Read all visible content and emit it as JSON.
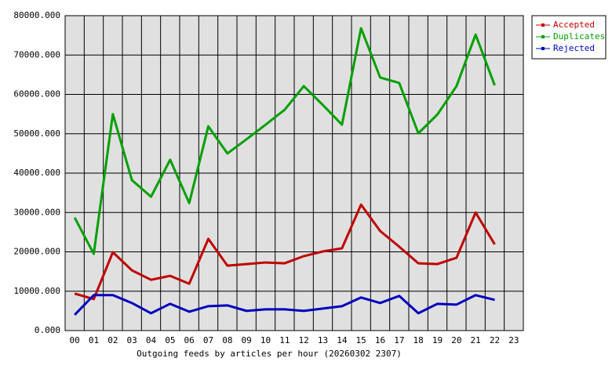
{
  "chart_data": {
    "type": "line",
    "title": "Outgoing feeds by articles per hour (20260302 2307)",
    "categories": [
      "00",
      "01",
      "02",
      "03",
      "04",
      "05",
      "06",
      "07",
      "08",
      "09",
      "10",
      "11",
      "12",
      "13",
      "14",
      "15",
      "16",
      "17",
      "18",
      "19",
      "20",
      "21",
      "22",
      "23"
    ],
    "series": [
      {
        "name": "Accepted",
        "color": "#c00000",
        "values": [
          9400,
          8000,
          19900,
          15300,
          12900,
          13900,
          11900,
          23300,
          16500,
          16900,
          17300,
          17100,
          18900,
          20100,
          20900,
          32000,
          25300,
          21300,
          17100,
          16900,
          18500,
          30000,
          21900,
          null
        ]
      },
      {
        "name": "Duplicates",
        "color": "#00a000",
        "values": [
          28700,
          19500,
          55000,
          38200,
          34000,
          43400,
          32400,
          51900,
          45000,
          48600,
          52300,
          56100,
          62100,
          57300,
          52300,
          76800,
          64300,
          62900,
          50100,
          54900,
          62100,
          75200,
          62300,
          null
        ]
      },
      {
        "name": "Rejected",
        "color": "#0000c0",
        "values": [
          4000,
          9000,
          9000,
          7000,
          4400,
          6800,
          4800,
          6200,
          6400,
          5000,
          5400,
          5400,
          5000,
          5600,
          6200,
          8400,
          7000,
          8800,
          4400,
          6800,
          6600,
          9000,
          7800,
          null
        ]
      }
    ],
    "ylim": [
      0,
      80000
    ],
    "yticks": [
      {
        "value": 0,
        "label": "0.000"
      },
      {
        "value": 10000,
        "label": "10000.000"
      },
      {
        "value": 20000,
        "label": "20000.000"
      },
      {
        "value": 30000,
        "label": "30000.000"
      },
      {
        "value": 40000,
        "label": "40000.000"
      },
      {
        "value": 50000,
        "label": "50000.000"
      },
      {
        "value": 60000,
        "label": "60000.000"
      },
      {
        "value": 70000,
        "label": "70000.000"
      },
      {
        "value": 80000,
        "label": "80000.000"
      }
    ],
    "grid": true,
    "legend": "top-right"
  }
}
